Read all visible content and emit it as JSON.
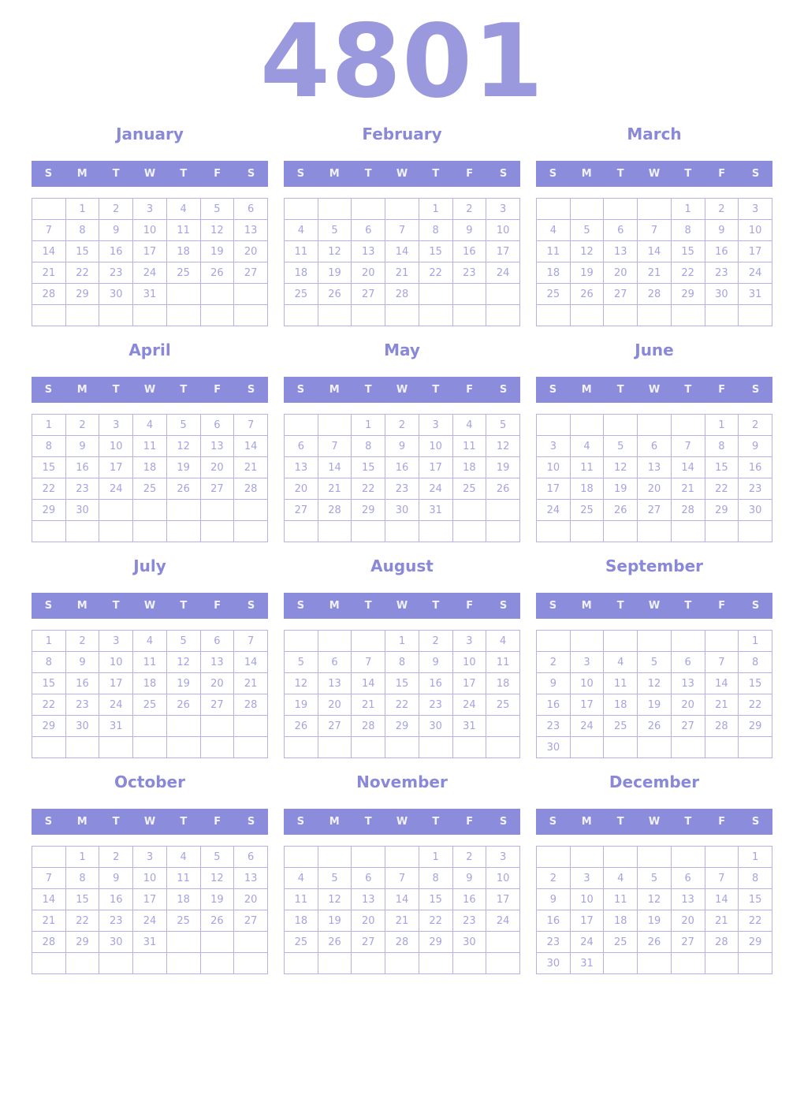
{
  "page": {
    "year": "4801"
  },
  "weekday_headers": [
    "S",
    "M",
    "T",
    "W",
    "T",
    "F",
    "S"
  ],
  "colors": {
    "year_title": "#9a99dd",
    "month_title": "#8a88d8",
    "band_background": "#8c8cdc",
    "band_text": "#f2f2fc",
    "day_number": "#a5a3e0",
    "grid_border": "#b6b1ea"
  },
  "months": [
    {
      "name": "January",
      "weeks": [
        [
          "",
          1,
          2,
          3,
          4,
          5,
          6
        ],
        [
          7,
          8,
          9,
          10,
          11,
          12,
          13
        ],
        [
          14,
          15,
          16,
          17,
          18,
          19,
          20
        ],
        [
          21,
          22,
          23,
          24,
          25,
          26,
          27
        ],
        [
          28,
          29,
          30,
          31,
          "",
          "",
          ""
        ],
        [
          "",
          "",
          "",
          "",
          "",
          "",
          ""
        ]
      ]
    },
    {
      "name": "February",
      "weeks": [
        [
          "",
          "",
          "",
          "",
          1,
          2,
          3
        ],
        [
          4,
          5,
          6,
          7,
          8,
          9,
          10
        ],
        [
          11,
          12,
          13,
          14,
          15,
          16,
          17
        ],
        [
          18,
          19,
          20,
          21,
          22,
          23,
          24
        ],
        [
          25,
          26,
          27,
          28,
          "",
          "",
          ""
        ],
        [
          "",
          "",
          "",
          "",
          "",
          "",
          ""
        ]
      ]
    },
    {
      "name": "March",
      "weeks": [
        [
          "",
          "",
          "",
          "",
          1,
          2,
          3
        ],
        [
          4,
          5,
          6,
          7,
          8,
          9,
          10
        ],
        [
          11,
          12,
          13,
          14,
          15,
          16,
          17
        ],
        [
          18,
          19,
          20,
          21,
          22,
          23,
          24
        ],
        [
          25,
          26,
          27,
          28,
          29,
          30,
          31
        ],
        [
          "",
          "",
          "",
          "",
          "",
          "",
          ""
        ]
      ]
    },
    {
      "name": "April",
      "weeks": [
        [
          1,
          2,
          3,
          4,
          5,
          6,
          7
        ],
        [
          8,
          9,
          10,
          11,
          12,
          13,
          14
        ],
        [
          15,
          16,
          17,
          18,
          19,
          20,
          21
        ],
        [
          22,
          23,
          24,
          25,
          26,
          27,
          28
        ],
        [
          29,
          30,
          "",
          "",
          "",
          "",
          ""
        ],
        [
          "",
          "",
          "",
          "",
          "",
          "",
          ""
        ]
      ]
    },
    {
      "name": "May",
      "weeks": [
        [
          "",
          "",
          1,
          2,
          3,
          4,
          5
        ],
        [
          6,
          7,
          8,
          9,
          10,
          11,
          12
        ],
        [
          13,
          14,
          15,
          16,
          17,
          18,
          19
        ],
        [
          20,
          21,
          22,
          23,
          24,
          25,
          26
        ],
        [
          27,
          28,
          29,
          30,
          31,
          "",
          ""
        ],
        [
          "",
          "",
          "",
          "",
          "",
          "",
          ""
        ]
      ]
    },
    {
      "name": "June",
      "weeks": [
        [
          "",
          "",
          "",
          "",
          "",
          1,
          2
        ],
        [
          3,
          4,
          5,
          6,
          7,
          8,
          9
        ],
        [
          10,
          11,
          12,
          13,
          14,
          15,
          16
        ],
        [
          17,
          18,
          19,
          20,
          21,
          22,
          23
        ],
        [
          24,
          25,
          26,
          27,
          28,
          29,
          30
        ],
        [
          "",
          "",
          "",
          "",
          "",
          "",
          ""
        ]
      ]
    },
    {
      "name": "July",
      "weeks": [
        [
          1,
          2,
          3,
          4,
          5,
          6,
          7
        ],
        [
          8,
          9,
          10,
          11,
          12,
          13,
          14
        ],
        [
          15,
          16,
          17,
          18,
          19,
          20,
          21
        ],
        [
          22,
          23,
          24,
          25,
          26,
          27,
          28
        ],
        [
          29,
          30,
          31,
          "",
          "",
          "",
          ""
        ],
        [
          "",
          "",
          "",
          "",
          "",
          "",
          ""
        ]
      ]
    },
    {
      "name": "August",
      "weeks": [
        [
          "",
          "",
          "",
          1,
          2,
          3,
          4
        ],
        [
          5,
          6,
          7,
          8,
          9,
          10,
          11
        ],
        [
          12,
          13,
          14,
          15,
          16,
          17,
          18
        ],
        [
          19,
          20,
          21,
          22,
          23,
          24,
          25
        ],
        [
          26,
          27,
          28,
          29,
          30,
          31,
          ""
        ],
        [
          "",
          "",
          "",
          "",
          "",
          "",
          ""
        ]
      ]
    },
    {
      "name": "September",
      "weeks": [
        [
          "",
          "",
          "",
          "",
          "",
          "",
          1
        ],
        [
          2,
          3,
          4,
          5,
          6,
          7,
          8
        ],
        [
          9,
          10,
          11,
          12,
          13,
          14,
          15
        ],
        [
          16,
          17,
          18,
          19,
          20,
          21,
          22
        ],
        [
          23,
          24,
          25,
          26,
          27,
          28,
          29
        ],
        [
          30,
          "",
          "",
          "",
          "",
          "",
          ""
        ]
      ]
    },
    {
      "name": "October",
      "weeks": [
        [
          "",
          1,
          2,
          3,
          4,
          5,
          6
        ],
        [
          7,
          8,
          9,
          10,
          11,
          12,
          13
        ],
        [
          14,
          15,
          16,
          17,
          18,
          19,
          20
        ],
        [
          21,
          22,
          23,
          24,
          25,
          26,
          27
        ],
        [
          28,
          29,
          30,
          31,
          "",
          "",
          ""
        ],
        [
          "",
          "",
          "",
          "",
          "",
          "",
          ""
        ]
      ]
    },
    {
      "name": "November",
      "weeks": [
        [
          "",
          "",
          "",
          "",
          1,
          2,
          3
        ],
        [
          4,
          5,
          6,
          7,
          8,
          9,
          10
        ],
        [
          11,
          12,
          13,
          14,
          15,
          16,
          17
        ],
        [
          18,
          19,
          20,
          21,
          22,
          23,
          24
        ],
        [
          25,
          26,
          27,
          28,
          29,
          30,
          ""
        ],
        [
          "",
          "",
          "",
          "",
          "",
          "",
          ""
        ]
      ]
    },
    {
      "name": "December",
      "weeks": [
        [
          "",
          "",
          "",
          "",
          "",
          "",
          1
        ],
        [
          2,
          3,
          4,
          5,
          6,
          7,
          8
        ],
        [
          9,
          10,
          11,
          12,
          13,
          14,
          15
        ],
        [
          16,
          17,
          18,
          19,
          20,
          21,
          22
        ],
        [
          23,
          24,
          25,
          26,
          27,
          28,
          29
        ],
        [
          30,
          31,
          "",
          "",
          "",
          "",
          ""
        ]
      ]
    }
  ]
}
